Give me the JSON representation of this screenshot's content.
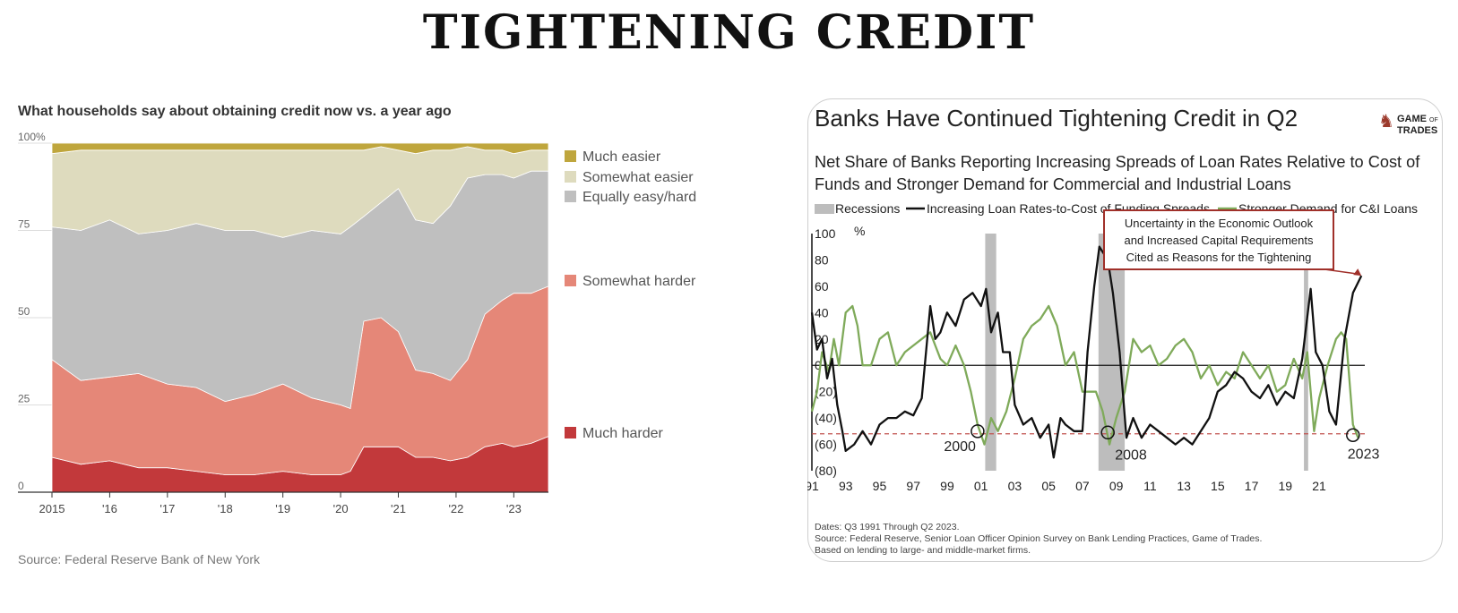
{
  "title": "TIGHTENING CREDIT",
  "chart_data": [
    {
      "type": "area",
      "title": "What households say about obtaining credit now vs. a year ago",
      "source": "Source: Federal Reserve Bank of New York",
      "y_ticks": [
        "100%",
        "75",
        "50",
        "25",
        "0"
      ],
      "x_ticks": [
        "2015",
        "'16",
        "'17",
        "'18",
        "'19",
        "'20",
        "'21",
        "'22",
        "'23"
      ],
      "ylim": [
        0,
        100
      ],
      "stacked": true,
      "x": [
        2015.0,
        2015.5,
        2016.0,
        2016.5,
        2017.0,
        2017.5,
        2018.0,
        2018.5,
        2019.0,
        2019.5,
        2020.0,
        2020.17,
        2020.4,
        2020.7,
        2021.0,
        2021.3,
        2021.6,
        2021.9,
        2022.2,
        2022.5,
        2022.8,
        2023.0,
        2023.3,
        2023.6
      ],
      "series": [
        {
          "name": "Much harder",
          "color": "#c2393b",
          "values": [
            10,
            8,
            9,
            7,
            7,
            6,
            5,
            5,
            6,
            5,
            5,
            6,
            13,
            13,
            13,
            10,
            10,
            9,
            10,
            13,
            14,
            13,
            14,
            16
          ]
        },
        {
          "name": "Somewhat harder",
          "color": "#e58778",
          "values": [
            28,
            24,
            24,
            27,
            24,
            24,
            21,
            23,
            25,
            22,
            20,
            18,
            36,
            37,
            33,
            25,
            24,
            23,
            28,
            38,
            41,
            44,
            43,
            43
          ]
        },
        {
          "name": "Equally easy/hard",
          "color": "#bfbfbf",
          "values": [
            38,
            43,
            45,
            40,
            44,
            47,
            49,
            47,
            42,
            48,
            49,
            52,
            30,
            33,
            41,
            43,
            43,
            50,
            52,
            40,
            36,
            33,
            35,
            33
          ]
        },
        {
          "name": "Somewhat easier",
          "color": "#dedbbe",
          "values": [
            21,
            23,
            20,
            24,
            23,
            21,
            23,
            23,
            25,
            23,
            24,
            22,
            19,
            16,
            11,
            19,
            21,
            16,
            9,
            7,
            7,
            7,
            6,
            6
          ]
        },
        {
          "name": "Much easier",
          "color": "#bfa63d",
          "values": [
            3,
            2,
            2,
            2,
            2,
            2,
            2,
            2,
            2,
            2,
            2,
            2,
            2,
            1,
            2,
            3,
            2,
            2,
            1,
            2,
            2,
            3,
            2,
            2
          ]
        }
      ],
      "legend_order": [
        "Much easier",
        "Somewhat easier",
        "Equally easy/hard",
        "Somewhat harder",
        "Much harder"
      ]
    },
    {
      "type": "line",
      "title": "Banks Have Continued Tightening Credit in Q2",
      "subtitle": "Net Share of Banks Reporting Increasing Spreads of Loan Rates Relative to Cost of Funds and Stronger Demand for Commercial and Industrial Loans",
      "subtitle_lines": [
        "Net Share of Banks Reporting Increasing Spreads of Loan Rates Relative to Cost of",
        "Funds and Stronger Demand for Commercial and Industrial Loans"
      ],
      "brand": [
        "GAME",
        "OF",
        "TRADES"
      ],
      "legend": [
        "Recessions",
        "Increasing Loan Rates-to-Cost of Funding Spreads",
        "Stronger Demand for C&I Loans"
      ],
      "ylabel": "%",
      "y_ticks": [
        "100",
        "80",
        "60",
        "40",
        "20",
        "0",
        "(20)",
        "(40)",
        "(60)",
        "(80)"
      ],
      "y_tick_values": [
        100,
        80,
        60,
        40,
        20,
        0,
        -20,
        -40,
        -60,
        -80
      ],
      "ylim": [
        -80,
        100
      ],
      "x_ticks": [
        "91",
        "93",
        "95",
        "97",
        "99",
        "01",
        "03",
        "05",
        "07",
        "09",
        "11",
        "13",
        "15",
        "17",
        "19",
        "21"
      ],
      "xlim": [
        1991,
        2023.7
      ],
      "recessions": [
        [
          2001.25,
          2001.9
        ],
        [
          2007.95,
          2009.5
        ],
        [
          2020.1,
          2020.35
        ]
      ],
      "reference_line": -52,
      "annotation_points": [
        {
          "label": "2000",
          "x": 2000.8,
          "y": -50
        },
        {
          "label": "2008",
          "x": 2008.5,
          "y": -51
        },
        {
          "label": "2023",
          "x": 2023.0,
          "y": -53
        }
      ],
      "callout": [
        "Uncertainty in the Economic Outlook",
        "and Increased Capital Requirements",
        "Cited as Reasons for the Tightening"
      ],
      "series": [
        {
          "name": "Increasing Loan Rates-to-Cost of Funding Spreads",
          "color": "#111111",
          "x": [
            1991.0,
            1991.3,
            1991.6,
            1991.9,
            1992.2,
            1992.5,
            1992.8,
            1993.0,
            1993.5,
            1994.0,
            1994.5,
            1995.0,
            1995.5,
            1996.0,
            1996.5,
            1997.0,
            1997.5,
            1998.0,
            1998.3,
            1998.6,
            1999.0,
            1999.5,
            2000.0,
            2000.5,
            2001.0,
            2001.3,
            2001.6,
            2002.0,
            2002.3,
            2002.7,
            2003.0,
            2003.5,
            2004.0,
            2004.5,
            2005.0,
            2005.3,
            2005.7,
            2006.0,
            2006.5,
            2007.0,
            2007.3,
            2007.7,
            2008.0,
            2008.5,
            2008.8,
            2009.2,
            2009.6,
            2010.0,
            2010.5,
            2011.0,
            2011.5,
            2012.0,
            2012.5,
            2013.0,
            2013.5,
            2014.0,
            2014.5,
            2015.0,
            2015.5,
            2016.0,
            2016.5,
            2017.0,
            2017.5,
            2018.0,
            2018.5,
            2019.0,
            2019.5,
            2020.0,
            2020.5,
            2020.8,
            2021.2,
            2021.6,
            2022.0,
            2022.5,
            2023.0,
            2023.5
          ],
          "y": [
            40,
            12,
            20,
            -10,
            5,
            -30,
            -50,
            -65,
            -60,
            -50,
            -60,
            -45,
            -40,
            -40,
            -35,
            -38,
            -25,
            45,
            20,
            25,
            40,
            30,
            50,
            55,
            45,
            58,
            25,
            40,
            10,
            10,
            -30,
            -45,
            -40,
            -55,
            -45,
            -70,
            -40,
            -45,
            -50,
            -50,
            10,
            60,
            90,
            80,
            55,
            10,
            -55,
            -40,
            -55,
            -45,
            -50,
            -55,
            -60,
            -55,
            -60,
            -50,
            -40,
            -20,
            -15,
            -5,
            -10,
            -20,
            -25,
            -15,
            -30,
            -20,
            -25,
            5,
            58,
            10,
            0,
            -35,
            -45,
            20,
            55,
            68
          ]
        },
        {
          "name": "Stronger Demand for C&I Loans",
          "color": "#7faa5a",
          "x": [
            1991.0,
            1991.3,
            1991.6,
            1992.0,
            1992.3,
            1992.6,
            1993.0,
            1993.4,
            1993.7,
            1994.0,
            1994.5,
            1995.0,
            1995.5,
            1996.0,
            1996.5,
            1997.0,
            1997.5,
            1998.0,
            1998.3,
            1998.6,
            1999.0,
            1999.5,
            2000.0,
            2000.4,
            2000.8,
            2001.2,
            2001.6,
            2002.0,
            2002.5,
            2003.0,
            2003.5,
            2004.0,
            2004.5,
            2005.0,
            2005.5,
            2006.0,
            2006.5,
            2007.0,
            2007.4,
            2007.8,
            2008.2,
            2008.6,
            2009.0,
            2009.5,
            2010.0,
            2010.5,
            2011.0,
            2011.5,
            2012.0,
            2012.5,
            2013.0,
            2013.5,
            2014.0,
            2014.5,
            2015.0,
            2015.5,
            2016.0,
            2016.5,
            2017.0,
            2017.5,
            2018.0,
            2018.5,
            2019.0,
            2019.5,
            2020.0,
            2020.3,
            2020.7,
            2021.0,
            2021.5,
            2022.0,
            2022.3,
            2022.6,
            2023.0,
            2023.3
          ],
          "y": [
            -35,
            -20,
            10,
            -5,
            20,
            0,
            40,
            45,
            30,
            0,
            0,
            20,
            25,
            0,
            10,
            15,
            20,
            25,
            15,
            5,
            0,
            15,
            0,
            -20,
            -45,
            -60,
            -40,
            -50,
            -35,
            -10,
            20,
            30,
            35,
            45,
            30,
            0,
            10,
            -20,
            -20,
            -20,
            -35,
            -60,
            -40,
            -20,
            20,
            10,
            15,
            0,
            5,
            15,
            20,
            10,
            -10,
            0,
            -15,
            -5,
            -10,
            10,
            0,
            -10,
            0,
            -20,
            -15,
            5,
            -10,
            10,
            -50,
            -25,
            0,
            20,
            25,
            20,
            -45,
            -55
          ]
        }
      ]
    }
  ]
}
